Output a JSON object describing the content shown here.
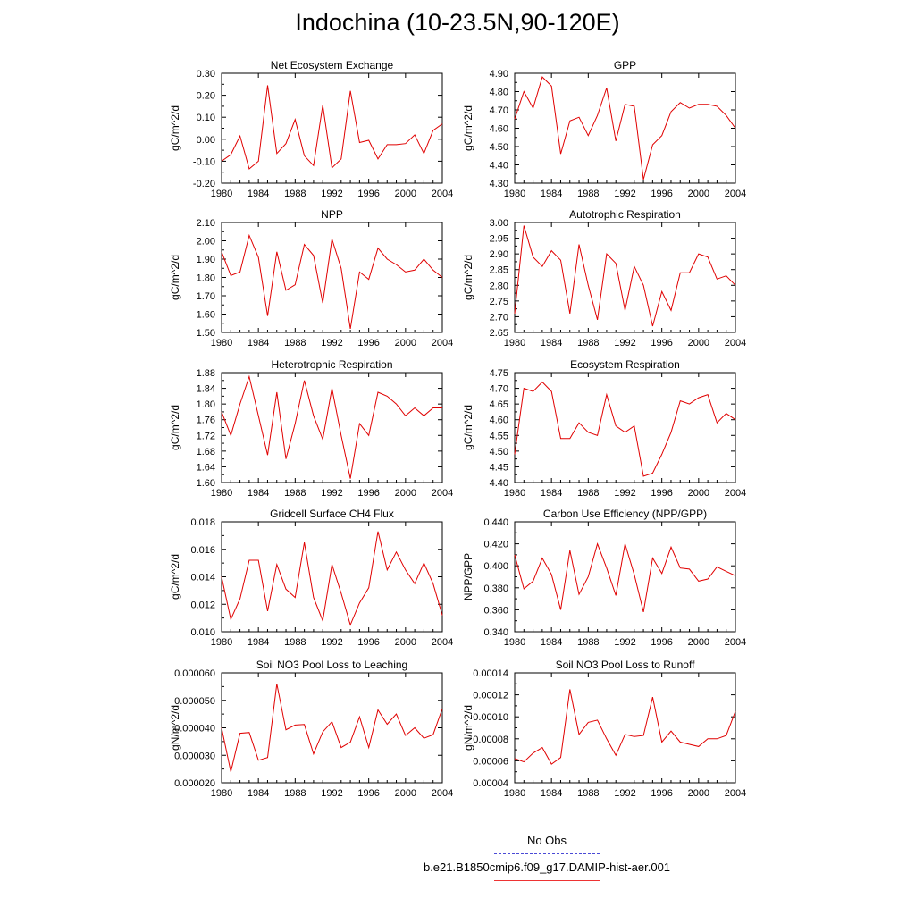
{
  "title": "Indochina (10-23.5N,90-120E)",
  "legend": {
    "obs_label": "No Obs",
    "obs_color": "#4a4ad6",
    "run_label": "b.e21.B1850cmip6.f09_g17.DAMIP-hist-aer.001",
    "run_color": "#e00000"
  },
  "chart_data": [
    {
      "type": "line",
      "title": "Net Ecosystem Exchange",
      "ylabel": "gC/m^2/d",
      "xlim": [
        1980,
        2004
      ],
      "ylim": [
        -0.2,
        0.3
      ],
      "xticks": [
        "1980",
        "1984",
        "1988",
        "1992",
        "1996",
        "2000",
        "2004"
      ],
      "yticks": [
        "-0.20",
        "-0.10",
        "0.00",
        "0.10",
        "0.20",
        "0.30"
      ],
      "x": [
        1980,
        1981,
        1982,
        1983,
        1984,
        1985,
        1986,
        1987,
        1988,
        1989,
        1990,
        1991,
        1992,
        1993,
        1994,
        1995,
        1996,
        1997,
        1998,
        1999,
        2000,
        2001,
        2002,
        2003,
        2004
      ],
      "series": [
        {
          "values": [
            -0.1,
            -0.07,
            0.015,
            -0.135,
            -0.1,
            0.245,
            -0.065,
            -0.02,
            0.09,
            -0.075,
            -0.12,
            0.155,
            -0.13,
            -0.09,
            0.22,
            -0.015,
            -0.005,
            -0.09,
            -0.025,
            -0.025,
            -0.02,
            0.02,
            -0.065,
            0.04,
            0.07
          ]
        }
      ]
    },
    {
      "type": "line",
      "title": "GPP",
      "ylabel": "gC/m^2/d",
      "xlim": [
        1980,
        2004
      ],
      "ylim": [
        4.3,
        4.9
      ],
      "xticks": [
        "1980",
        "1984",
        "1988",
        "1992",
        "1996",
        "2000",
        "2004"
      ],
      "yticks": [
        "4.30",
        "4.40",
        "4.50",
        "4.60",
        "4.70",
        "4.80",
        "4.90"
      ],
      "x": [
        1980,
        1981,
        1982,
        1983,
        1984,
        1985,
        1986,
        1987,
        1988,
        1989,
        1990,
        1991,
        1992,
        1993,
        1994,
        1995,
        1996,
        1997,
        1998,
        1999,
        2000,
        2001,
        2002,
        2003,
        2004
      ],
      "series": [
        {
          "values": [
            4.65,
            4.8,
            4.71,
            4.88,
            4.83,
            4.46,
            4.64,
            4.66,
            4.56,
            4.67,
            4.82,
            4.53,
            4.73,
            4.72,
            4.32,
            4.51,
            4.56,
            4.69,
            4.74,
            4.71,
            4.73,
            4.73,
            4.72,
            4.67,
            4.6
          ]
        }
      ]
    },
    {
      "type": "line",
      "title": "NPP",
      "ylabel": "gC/m^2/d",
      "xlim": [
        1980,
        2004
      ],
      "ylim": [
        1.5,
        2.1
      ],
      "xticks": [
        "1980",
        "1984",
        "1988",
        "1992",
        "1996",
        "2000",
        "2004"
      ],
      "yticks": [
        "1.50",
        "1.60",
        "1.70",
        "1.80",
        "1.90",
        "2.00",
        "2.10"
      ],
      "x": [
        1980,
        1981,
        1982,
        1983,
        1984,
        1985,
        1986,
        1987,
        1988,
        1989,
        1990,
        1991,
        1992,
        1993,
        1994,
        1995,
        1996,
        1997,
        1998,
        1999,
        2000,
        2001,
        2002,
        2003,
        2004
      ],
      "series": [
        {
          "values": [
            1.94,
            1.81,
            1.83,
            2.03,
            1.91,
            1.59,
            1.94,
            1.73,
            1.76,
            1.98,
            1.92,
            1.66,
            2.01,
            1.85,
            1.52,
            1.83,
            1.79,
            1.96,
            1.9,
            1.87,
            1.83,
            1.84,
            1.9,
            1.84,
            1.8
          ]
        }
      ]
    },
    {
      "type": "line",
      "title": "Autotrophic Respiration",
      "ylabel": "gC/m^2/d",
      "xlim": [
        1980,
        2004
      ],
      "ylim": [
        2.65,
        3.0
      ],
      "xticks": [
        "1980",
        "1984",
        "1988",
        "1992",
        "1996",
        "2000",
        "2004"
      ],
      "yticks": [
        "2.65",
        "2.70",
        "2.75",
        "2.80",
        "2.85",
        "2.90",
        "2.95",
        "3.00"
      ],
      "x": [
        1980,
        1981,
        1982,
        1983,
        1984,
        1985,
        1986,
        1987,
        1988,
        1989,
        1990,
        1991,
        1992,
        1993,
        1994,
        1995,
        1996,
        1997,
        1998,
        1999,
        2000,
        2001,
        2002,
        2003,
        2004
      ],
      "series": [
        {
          "values": [
            2.71,
            2.99,
            2.89,
            2.86,
            2.91,
            2.88,
            2.71,
            2.93,
            2.8,
            2.69,
            2.9,
            2.87,
            2.72,
            2.86,
            2.8,
            2.67,
            2.78,
            2.72,
            2.84,
            2.84,
            2.9,
            2.89,
            2.82,
            2.83,
            2.8
          ]
        }
      ]
    },
    {
      "type": "line",
      "title": "Heterotrophic Respiration",
      "ylabel": "gC/m^2/d",
      "xlim": [
        1980,
        2004
      ],
      "ylim": [
        1.6,
        1.88
      ],
      "xticks": [
        "1980",
        "1984",
        "1988",
        "1992",
        "1996",
        "2000",
        "2004"
      ],
      "yticks": [
        "1.60",
        "1.64",
        "1.68",
        "1.72",
        "1.76",
        "1.80",
        "1.84",
        "1.88"
      ],
      "x": [
        1980,
        1981,
        1982,
        1983,
        1984,
        1985,
        1986,
        1987,
        1988,
        1989,
        1990,
        1991,
        1992,
        1993,
        1994,
        1995,
        1996,
        1997,
        1998,
        1999,
        2000,
        2001,
        2002,
        2003,
        2004
      ],
      "series": [
        {
          "values": [
            1.78,
            1.72,
            1.8,
            1.87,
            1.77,
            1.67,
            1.83,
            1.66,
            1.75,
            1.86,
            1.77,
            1.71,
            1.84,
            1.72,
            1.61,
            1.75,
            1.72,
            1.83,
            1.82,
            1.8,
            1.77,
            1.79,
            1.77,
            1.79,
            1.79
          ]
        }
      ]
    },
    {
      "type": "line",
      "title": "Ecosystem Respiration",
      "ylabel": "gC/m^2/d",
      "xlim": [
        1980,
        2004
      ],
      "ylim": [
        4.4,
        4.75
      ],
      "xticks": [
        "1980",
        "1984",
        "1988",
        "1992",
        "1996",
        "2000",
        "2004"
      ],
      "yticks": [
        "4.40",
        "4.45",
        "4.50",
        "4.55",
        "4.60",
        "4.65",
        "4.70",
        "4.75"
      ],
      "x": [
        1980,
        1981,
        1982,
        1983,
        1984,
        1985,
        1986,
        1987,
        1988,
        1989,
        1990,
        1991,
        1992,
        1993,
        1994,
        1995,
        1996,
        1997,
        1998,
        1999,
        2000,
        2001,
        2002,
        2003,
        2004
      ],
      "series": [
        {
          "values": [
            4.49,
            4.7,
            4.69,
            4.72,
            4.69,
            4.54,
            4.54,
            4.59,
            4.56,
            4.55,
            4.68,
            4.58,
            4.56,
            4.58,
            4.42,
            4.43,
            4.49,
            4.56,
            4.66,
            4.65,
            4.67,
            4.68,
            4.59,
            4.62,
            4.6
          ]
        }
      ]
    },
    {
      "type": "line",
      "title": "Gridcell Surface CH4 Flux",
      "ylabel": "gC/m^2/d",
      "xlim": [
        1980,
        2004
      ],
      "ylim": [
        0.01,
        0.018
      ],
      "xticks": [
        "1980",
        "1984",
        "1988",
        "1992",
        "1996",
        "2000",
        "2004"
      ],
      "yticks": [
        "0.010",
        "0.012",
        "0.014",
        "0.016",
        "0.018"
      ],
      "x": [
        1980,
        1981,
        1982,
        1983,
        1984,
        1985,
        1986,
        1987,
        1988,
        1989,
        1990,
        1991,
        1992,
        1993,
        1994,
        1995,
        1996,
        1997,
        1998,
        1999,
        2000,
        2001,
        2002,
        2003,
        2004
      ],
      "series": [
        {
          "values": [
            0.014,
            0.0109,
            0.0124,
            0.0152,
            0.0152,
            0.0115,
            0.0149,
            0.0131,
            0.0125,
            0.0165,
            0.0125,
            0.0108,
            0.0149,
            0.0128,
            0.0105,
            0.0121,
            0.0132,
            0.0173,
            0.0145,
            0.0158,
            0.0145,
            0.0135,
            0.015,
            0.0135,
            0.0112
          ]
        }
      ]
    },
    {
      "type": "line",
      "title": "Carbon Use Efficiency (NPP/GPP)",
      "ylabel": "NPP/GPP",
      "xlim": [
        1980,
        2004
      ],
      "ylim": [
        0.34,
        0.44
      ],
      "xticks": [
        "1980",
        "1984",
        "1988",
        "1992",
        "1996",
        "2000",
        "2004"
      ],
      "yticks": [
        "0.340",
        "0.360",
        "0.380",
        "0.400",
        "0.420",
        "0.440"
      ],
      "x": [
        1980,
        1981,
        1982,
        1983,
        1984,
        1985,
        1986,
        1987,
        1988,
        1989,
        1990,
        1991,
        1992,
        1993,
        1994,
        1995,
        1996,
        1997,
        1998,
        1999,
        2000,
        2001,
        2002,
        2003,
        2004
      ],
      "series": [
        {
          "values": [
            0.41,
            0.379,
            0.386,
            0.407,
            0.392,
            0.36,
            0.414,
            0.374,
            0.39,
            0.42,
            0.398,
            0.373,
            0.42,
            0.392,
            0.358,
            0.407,
            0.393,
            0.417,
            0.398,
            0.397,
            0.386,
            0.388,
            0.399,
            0.395,
            0.391
          ]
        }
      ]
    },
    {
      "type": "line",
      "title": "Soil NO3 Pool Loss to Leaching",
      "ylabel": "gN/m^2/d",
      "xlim": [
        1980,
        2004
      ],
      "ylim": [
        2e-05,
        6e-05
      ],
      "xticks": [
        "1980",
        "1984",
        "1988",
        "1992",
        "1996",
        "2000",
        "2004"
      ],
      "yticks": [
        "0.000020",
        "0.000030",
        "0.000040",
        "0.000050",
        "0.000060"
      ],
      "x": [
        1980,
        1981,
        1982,
        1983,
        1984,
        1985,
        1986,
        1987,
        1988,
        1989,
        1990,
        1991,
        1992,
        1993,
        1994,
        1995,
        1996,
        1997,
        1998,
        1999,
        2000,
        2001,
        2002,
        2003,
        2004
      ],
      "series": [
        {
          "values": [
            4e-05,
            2.4e-05,
            3.8e-05,
            3.83e-05,
            2.82e-05,
            2.92e-05,
            5.6e-05,
            3.93e-05,
            4.1e-05,
            4.12e-05,
            3.05e-05,
            3.85e-05,
            4.22e-05,
            3.28e-05,
            3.48e-05,
            4.4e-05,
            3.28e-05,
            4.65e-05,
            4.13e-05,
            4.5e-05,
            3.72e-05,
            4e-05,
            3.62e-05,
            3.75e-05,
            4.7e-05
          ]
        }
      ]
    },
    {
      "type": "line",
      "title": "Soil NO3 Pool Loss to Runoff",
      "ylabel": "gN/m^2/d",
      "xlim": [
        1980,
        2004
      ],
      "ylim": [
        4e-05,
        0.00014
      ],
      "xticks": [
        "1980",
        "1984",
        "1988",
        "1992",
        "1996",
        "2000",
        "2004"
      ],
      "yticks": [
        "0.00004",
        "0.00006",
        "0.00008",
        "0.00010",
        "0.00012",
        "0.00014"
      ],
      "x": [
        1980,
        1981,
        1982,
        1983,
        1984,
        1985,
        1986,
        1987,
        1988,
        1989,
        1990,
        1991,
        1992,
        1993,
        1994,
        1995,
        1996,
        1997,
        1998,
        1999,
        2000,
        2001,
        2002,
        2003,
        2004
      ],
      "series": [
        {
          "values": [
            6.2e-05,
            5.9e-05,
            6.7e-05,
            7.2e-05,
            5.7e-05,
            6.3e-05,
            0.000125,
            8.4e-05,
            9.5e-05,
            9.7e-05,
            8e-05,
            6.5e-05,
            8.4e-05,
            8.2e-05,
            8.3e-05,
            0.000118,
            7.7e-05,
            8.7e-05,
            7.7e-05,
            7.5e-05,
            7.3e-05,
            8e-05,
            8e-05,
            8.3e-05,
            0.000105
          ]
        }
      ]
    }
  ]
}
